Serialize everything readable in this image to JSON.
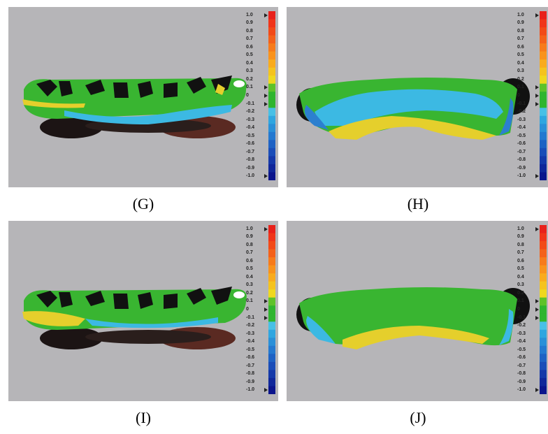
{
  "panels": [
    {
      "id": "G",
      "caption": "(G)",
      "view": "occlusal"
    },
    {
      "id": "H",
      "caption": "(H)",
      "view": "palatal"
    },
    {
      "id": "I",
      "caption": "(I)",
      "view": "occlusal"
    },
    {
      "id": "J",
      "caption": "(J)",
      "view": "palatal"
    }
  ],
  "scale": {
    "ticks": [
      "1.0",
      "0.9",
      "0.8",
      "0.7",
      "0.6",
      "0.5",
      "0.4",
      "0.3",
      "0.2",
      "0.1",
      "0",
      "-0.1",
      "-0.2",
      "-0.3",
      "-0.4",
      "-0.5",
      "-0.6",
      "-0.7",
      "-0.8",
      "-0.9",
      "-1.0"
    ],
    "colors": [
      "#e8211b",
      "#f0351a",
      "#f24a18",
      "#f4611a",
      "#f77b1b",
      "#f9931c",
      "#f9ab1d",
      "#f5c31e",
      "#efd81f",
      "#5ec22a",
      "#2fb52f",
      "#2fb52f",
      "#48c0e6",
      "#2fa6e0",
      "#2a90d8",
      "#2479d0",
      "#1e62c4",
      "#1a4db8",
      "#1539a9",
      "#10279a",
      "#0b158c"
    ]
  },
  "colors": {
    "background": "#b6b5b8",
    "green": "#39b531",
    "cyan": "#3cb9e3",
    "yellow": "#e5cf2c",
    "blue": "#2c7fcf",
    "dark": "#1a1a1a",
    "brown": "#5a2a22"
  }
}
